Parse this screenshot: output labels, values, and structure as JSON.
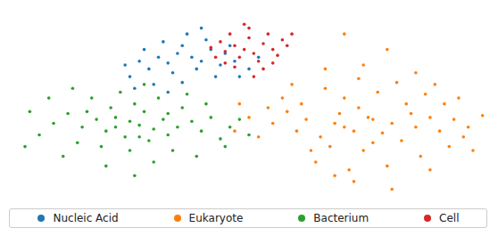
{
  "chart_data": {
    "type": "scatter",
    "xlim": [
      0,
      100
    ],
    "ylim": [
      0,
      100
    ],
    "tick_labels": false,
    "grid": false,
    "legend": "bottom",
    "marker": "circle",
    "series": [
      {
        "name": "Nucleic Acid",
        "color": "#1f77b4",
        "values": [
          [
            38,
            76
          ],
          [
            35,
            78
          ],
          [
            40,
            74
          ],
          [
            33,
            73
          ],
          [
            36,
            82
          ],
          [
            42,
            80
          ],
          [
            31,
            76
          ],
          [
            29,
            70
          ],
          [
            34,
            68
          ],
          [
            39,
            70
          ],
          [
            44,
            72
          ],
          [
            27,
            74
          ],
          [
            25,
            66
          ],
          [
            32,
            84
          ],
          [
            37,
            88
          ],
          [
            41,
            85
          ],
          [
            45,
            78
          ],
          [
            30,
            62
          ],
          [
            36,
            63
          ],
          [
            43,
            66
          ],
          [
            47,
            74
          ],
          [
            28,
            80
          ],
          [
            24,
            72
          ],
          [
            50,
            70
          ],
          [
            46,
            82
          ],
          [
            52,
            76
          ],
          [
            33,
            58
          ],
          [
            40,
            91
          ],
          [
            26,
            60
          ],
          [
            48,
            66
          ]
        ]
      },
      {
        "name": "Eukaryote",
        "color": "#ff7f0e",
        "values": [
          [
            70,
            40
          ],
          [
            72,
            38
          ],
          [
            68,
            42
          ],
          [
            75,
            45
          ],
          [
            65,
            35
          ],
          [
            78,
            37
          ],
          [
            73,
            50
          ],
          [
            80,
            42
          ],
          [
            62,
            44
          ],
          [
            67,
            30
          ],
          [
            74,
            28
          ],
          [
            82,
            33
          ],
          [
            85,
            40
          ],
          [
            88,
            45
          ],
          [
            60,
            38
          ],
          [
            58,
            48
          ],
          [
            70,
            55
          ],
          [
            77,
            58
          ],
          [
            83,
            52
          ],
          [
            90,
            38
          ],
          [
            93,
            44
          ],
          [
            96,
            40
          ],
          [
            99,
            46
          ],
          [
            55,
            42
          ],
          [
            52,
            35
          ],
          [
            64,
            22
          ],
          [
            71,
            18
          ],
          [
            79,
            20
          ],
          [
            86,
            25
          ],
          [
            92,
            30
          ],
          [
            66,
            60
          ],
          [
            73,
            65
          ],
          [
            81,
            63
          ],
          [
            87,
            57
          ],
          [
            57,
            55
          ],
          [
            54,
            50
          ],
          [
            61,
            52
          ],
          [
            69,
            47
          ],
          [
            76,
            32
          ],
          [
            84,
            47
          ],
          [
            91,
            52
          ],
          [
            95,
            35
          ],
          [
            63,
            28
          ],
          [
            72,
            12
          ],
          [
            80,
            8
          ],
          [
            68,
            15
          ],
          [
            88,
            18
          ],
          [
            74,
            72
          ],
          [
            79,
            80
          ],
          [
            70,
            88
          ],
          [
            85,
            68
          ],
          [
            66,
            70
          ],
          [
            50,
            45
          ],
          [
            47,
            38
          ],
          [
            48,
            52
          ],
          [
            89,
            62
          ],
          [
            94,
            55
          ],
          [
            97,
            28
          ],
          [
            59,
            62
          ],
          [
            76,
            44
          ]
        ]
      },
      {
        "name": "Bacterium",
        "color": "#2ca02c",
        "values": [
          [
            27,
            41
          ],
          [
            25,
            43
          ],
          [
            30,
            39
          ],
          [
            22,
            45
          ],
          [
            32,
            44
          ],
          [
            20,
            38
          ],
          [
            28,
            48
          ],
          [
            35,
            40
          ],
          [
            24,
            35
          ],
          [
            18,
            44
          ],
          [
            29,
            33
          ],
          [
            33,
            36
          ],
          [
            38,
            43
          ],
          [
            15,
            40
          ],
          [
            12,
            47
          ],
          [
            26,
            52
          ],
          [
            31,
            55
          ],
          [
            21,
            50
          ],
          [
            36,
            50
          ],
          [
            40,
            38
          ],
          [
            42,
            45
          ],
          [
            44,
            34
          ],
          [
            19,
            30
          ],
          [
            25,
            28
          ],
          [
            34,
            28
          ],
          [
            9,
            42
          ],
          [
            6,
            36
          ],
          [
            14,
            32
          ],
          [
            17,
            55
          ],
          [
            23,
            58
          ],
          [
            28,
            62
          ],
          [
            37,
            57
          ],
          [
            41,
            52
          ],
          [
            46,
            40
          ],
          [
            45,
            30
          ],
          [
            39,
            25
          ],
          [
            30,
            22
          ],
          [
            20,
            20
          ],
          [
            11,
            25
          ],
          [
            4,
            48
          ],
          [
            8,
            55
          ],
          [
            13,
            60
          ],
          [
            27,
            35
          ],
          [
            33,
            47
          ],
          [
            22,
            40
          ],
          [
            16,
            48
          ],
          [
            50,
            36
          ],
          [
            48,
            44
          ],
          [
            3,
            30
          ],
          [
            26,
            15
          ]
        ]
      },
      {
        "name": "Cell",
        "color": "#d62728",
        "values": [
          [
            49,
            80
          ],
          [
            47,
            82
          ],
          [
            51,
            78
          ],
          [
            45,
            79
          ],
          [
            53,
            83
          ],
          [
            50,
            86
          ],
          [
            48,
            76
          ],
          [
            55,
            80
          ],
          [
            44,
            84
          ],
          [
            52,
            74
          ],
          [
            46,
            88
          ],
          [
            54,
            88
          ],
          [
            57,
            85
          ],
          [
            43,
            76
          ],
          [
            50,
            91
          ],
          [
            47,
            71
          ],
          [
            56,
            77
          ],
          [
            58,
            82
          ],
          [
            42,
            81
          ],
          [
            53,
            70
          ],
          [
            49,
            93
          ],
          [
            45,
            73
          ],
          [
            59,
            88
          ],
          [
            51,
            66
          ],
          [
            55,
            73
          ]
        ]
      }
    ]
  }
}
